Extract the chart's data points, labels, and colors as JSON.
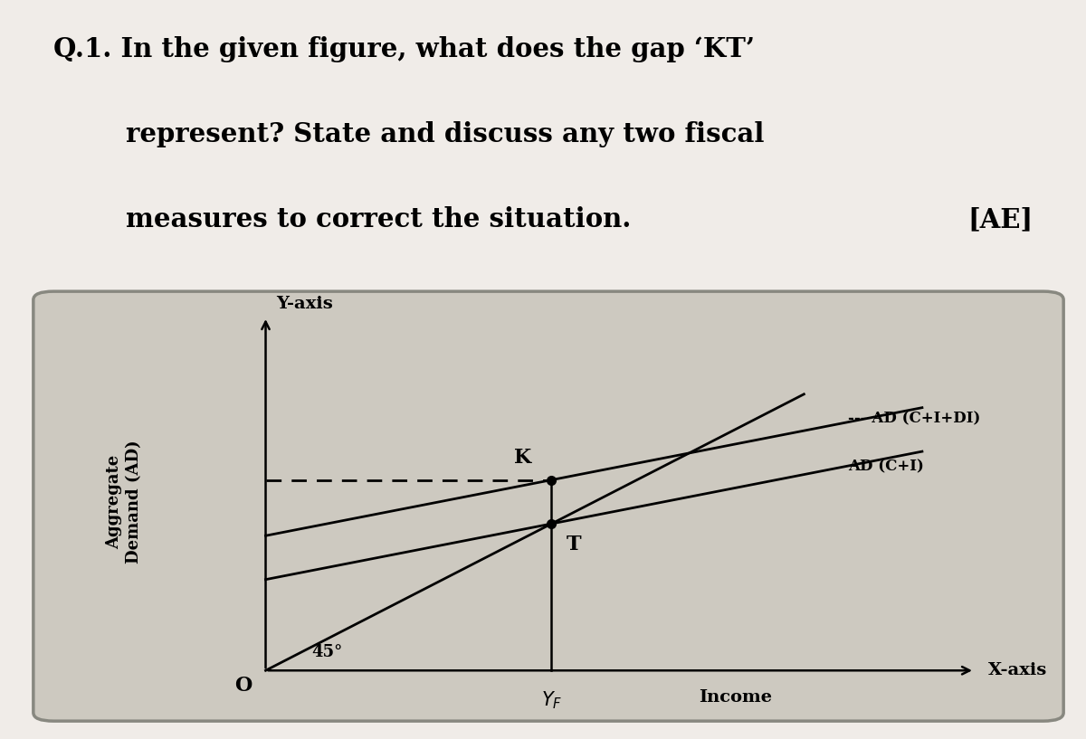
{
  "title_line1": "Q.1. In the given figure, what does the gap ‘KT’",
  "title_line2": "represent? State and discuss any two fiscal",
  "title_line3": "measures to correct the situation.",
  "title_tag": "[AE]",
  "fig_bg": "#f0ece8",
  "box_bg": "#cdc9c0",
  "ad_ci_intercept": 0.27,
  "ad_ci_slope": 0.38,
  "ad_ci_di_intercept": 0.4,
  "ad_ci_di_slope": 0.38,
  "label_AD_CI_DI": "AD (C+I+DI)",
  "label_AD_CI": "AD (C+I)",
  "label_yaxis": "Y-axis",
  "label_xaxis": "X-axis",
  "label_agg_line1": "Aggregate",
  "label_agg_line2": "Demand (AD)",
  "label_income": "Income",
  "label_45": "45°",
  "label_O": "O",
  "label_K": "K",
  "label_T": "T",
  "label_YF": "Y_F"
}
